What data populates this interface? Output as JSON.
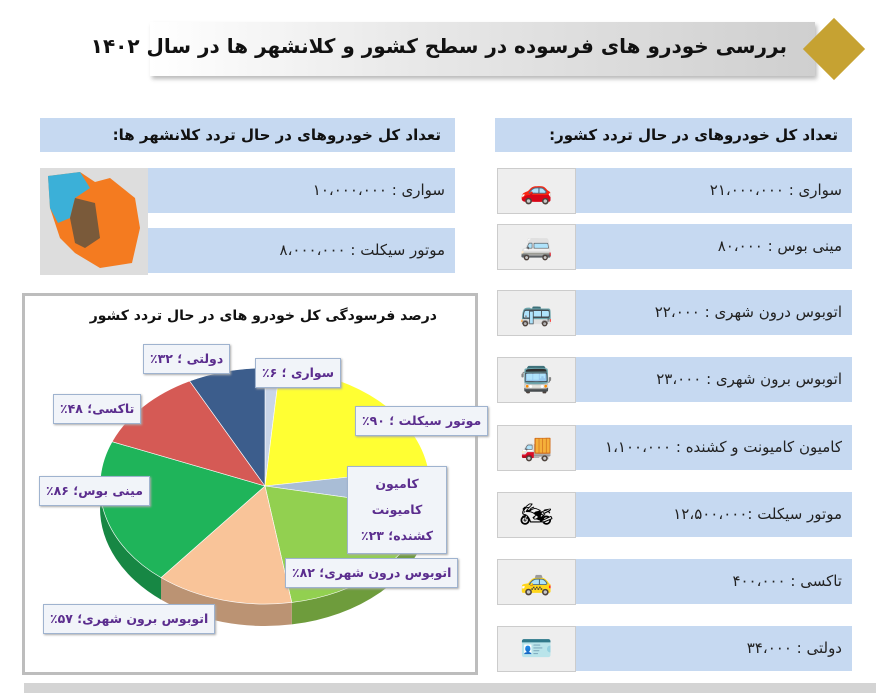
{
  "title": "بررسی خودرو های فرسوده در سطح کشور و کلانشهر ها در سال ۱۴۰۲",
  "metro": {
    "header": "تعداد کل خودروهای در حال تردد کلانشهر ها:",
    "rows": [
      "سواری : ۱۰،۰۰۰،۰۰۰",
      "موتور سیکلت : ۸،۰۰۰،۰۰۰"
    ],
    "map_icon": "iran-map-icon"
  },
  "country": {
    "header": "تعداد کل خودروهای در حال تردد کشور:",
    "rows": [
      {
        "text": "سواری : ۲۱،۰۰۰،۰۰۰",
        "icon": "car-icon"
      },
      {
        "text": "مینی  بوس : ۸۰،۰۰۰",
        "icon": "minibus-icon"
      },
      {
        "text": "اتوبوس درون شهری : ۲۲،۰۰۰",
        "icon": "city-bus-icon"
      },
      {
        "text": "اتوبوس برون شهری : ۲۳،۰۰۰",
        "icon": "coach-bus-icon"
      },
      {
        "text": "کامیون کامیونت و کشنده : ۱،۱۰۰،۰۰۰",
        "icon": "truck-icon"
      },
      {
        "text": "موتور سیکلت :۱۲،۵۰۰،۰۰۰",
        "icon": "motorcycle-icon"
      },
      {
        "text": "تاکسی : ۴۰۰،۰۰۰",
        "icon": "taxi-icon"
      },
      {
        "text": "دولتی : ۳۴،۰۰۰",
        "icon": "license-plate-icon"
      }
    ]
  },
  "chart_data": {
    "type": "pie",
    "title": "درصد فرسودگی کل خودرو های در حال تردد کشور",
    "style": "3d",
    "categories": [
      "سواری",
      "موتور سیکلت",
      "کامیون کامیونت کشنده",
      "اتوبوس درون شهری",
      "اتوبوس برون شهری",
      "مینی بوس",
      "تاکسی",
      "دولتی"
    ],
    "values": [
      6,
      90,
      23,
      82,
      57,
      86,
      48,
      32
    ],
    "labels": [
      "سواری ؛ ۶٪",
      "موتور سیکلت ؛ ۹۰٪",
      "کامیون کامیونت کشنده؛ ۲۳٪",
      "اتوبوس درون شهری؛ ۸۲٪",
      "اتوبوس برون شهری؛ ۵۷٪",
      "مینی بوس؛ ۸۶٪",
      "تاکسی؛ ۴۸٪",
      "دولتی ؛ ۳۲٪"
    ],
    "colors": [
      "#c9d5e8",
      "#ffff33",
      "#a9bdd6",
      "#92d050",
      "#f9c499",
      "#1fb45a",
      "#d55a55",
      "#3c5d8c"
    ]
  }
}
